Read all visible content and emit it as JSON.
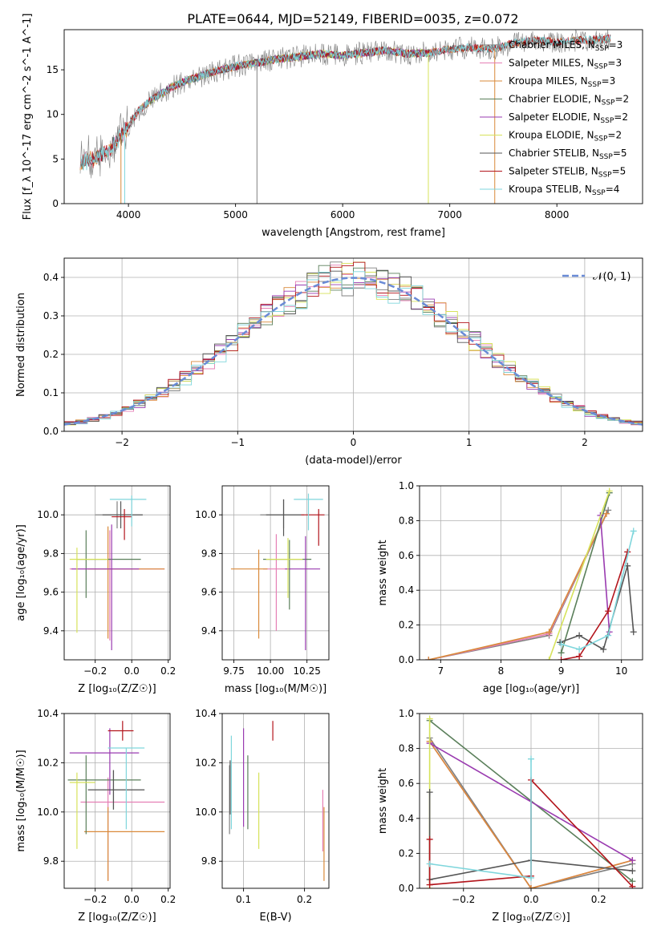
{
  "figure_title": "PLATE=0644, MJD=52149, FIBERID=0035, z=0.072",
  "model_colors": {
    "Chabrier MILES": "#808080",
    "Salpeter MILES": "#e57fb5",
    "Kroupa MILES": "#d98a3a",
    "Chabrier ELODIE": "#5a7f5a",
    "Salpeter ELODIE": "#9a3bb0",
    "Kroupa ELODIE": "#d6e25a",
    "Chabrier STELIB": "#555555",
    "Salpeter STELIB": "#b3151c",
    "Kroupa STELIB": "#7fd6dc"
  },
  "chart_data": [
    {
      "id": "spectrum",
      "type": "line",
      "title": "PLATE=0644, MJD=52149, FIBERID=0035, z=0.072",
      "xlabel": "wavelength [Angstrom, rest frame]",
      "ylabel": "Flux [f_λ 10^-17 erg cm^-2 s^-1 A^-1]",
      "xlim": [
        3400,
        8800
      ],
      "ylim": [
        0,
        19.5
      ],
      "xticks": [
        4000,
        5000,
        6000,
        7000,
        8000
      ],
      "yticks": [
        0,
        5,
        10,
        15
      ],
      "grid": false,
      "legend_position": "right",
      "continuum": {
        "x": [
          3550,
          3600,
          3700,
          3800,
          3900,
          4000,
          4100,
          4200,
          4300,
          4400,
          4500,
          4600,
          4700,
          4800,
          4900,
          5000,
          5200,
          5400,
          5600,
          5800,
          6000,
          6200,
          6400,
          6600,
          6800,
          7000,
          7200,
          7400,
          7600,
          7800,
          8000,
          8200,
          8400,
          8500
        ],
        "y": [
          4.5,
          4.7,
          5.2,
          5.8,
          7.0,
          8.8,
          10.5,
          11.5,
          12.3,
          13.0,
          13.6,
          14.0,
          14.4,
          14.8,
          15.1,
          15.4,
          15.8,
          16.2,
          16.5,
          16.8,
          16.6,
          16.9,
          17.2,
          16.8,
          16.9,
          17.3,
          17.5,
          17.3,
          18.0,
          18.3,
          18.1,
          18.3,
          18.4,
          18.5
        ]
      },
      "legend": [
        {
          "label": "Chabrier MILES, N",
          "sub": "SSP",
          "suffix": "=3"
        },
        {
          "label": "Salpeter MILES, N",
          "sub": "SSP",
          "suffix": "=3"
        },
        {
          "label": "Kroupa MILES, N",
          "sub": "SSP",
          "suffix": "=3"
        },
        {
          "label": "Chabrier ELODIE, N",
          "sub": "SSP",
          "suffix": "=2"
        },
        {
          "label": "Salpeter ELODIE, N",
          "sub": "SSP",
          "suffix": "=2"
        },
        {
          "label": "Kroupa ELODIE, N",
          "sub": "SSP",
          "suffix": "=2"
        },
        {
          "label": "Chabrier STELIB, N",
          "sub": "SSP",
          "suffix": "=5"
        },
        {
          "label": "Salpeter STELIB, N",
          "sub": "SSP",
          "suffix": "=5"
        },
        {
          "label": "Kroupa STELIB, N",
          "sub": "SSP",
          "suffix": "=4"
        }
      ]
    },
    {
      "id": "residuals",
      "type": "line",
      "xlabel": "(data-model)/error",
      "ylabel": "Normed distribution",
      "xlim": [
        -2.5,
        2.5
      ],
      "ylim": [
        0,
        0.45
      ],
      "xticks": [
        -2,
        -1,
        0,
        1,
        2
      ],
      "yticks": [
        0.0,
        0.1,
        0.2,
        0.3,
        0.4
      ],
      "grid": true,
      "legend_position": "top-right",
      "gaussian_label": "𝒩(0, 1)",
      "bin_width": 0.1
    },
    {
      "id": "age_vs_Z",
      "type": "scatter",
      "xlabel": "Z [log₁₀(Z/Z☉)]",
      "ylabel": "age  [log₁₀(age/yr)]",
      "xlim": [
        -0.37,
        0.21
      ],
      "ylim": [
        9.25,
        10.15
      ],
      "xticks": [
        -0.2,
        0.0,
        0.2
      ],
      "yticks": [
        9.4,
        9.6,
        9.8,
        10.0
      ],
      "grid": true,
      "points": [
        {
          "model": "Chabrier MILES",
          "x": -0.08,
          "y": 10.0,
          "xerr": [
            0.12,
            0.14
          ],
          "yerr": [
            0.07,
            0.07
          ]
        },
        {
          "model": "Salpeter MILES",
          "x": -0.12,
          "y": 9.72,
          "xerr": [
            0.22,
            0.3
          ],
          "yerr": [
            0.37,
            0.2
          ]
        },
        {
          "model": "Kroupa MILES",
          "x": -0.13,
          "y": 9.72,
          "xerr": [
            0.11,
            0.31
          ],
          "yerr": [
            0.36,
            0.22
          ]
        },
        {
          "model": "Chabrier ELODIE",
          "x": -0.25,
          "y": 9.77,
          "xerr": [
            0.05,
            0.3
          ],
          "yerr": [
            0.2,
            0.15
          ]
        },
        {
          "model": "Salpeter ELODIE",
          "x": -0.11,
          "y": 9.72,
          "xerr": [
            0.22,
            0.15
          ],
          "yerr": [
            0.42,
            0.23
          ]
        },
        {
          "model": "Kroupa ELODIE",
          "x": -0.3,
          "y": 9.77,
          "xerr": [
            0.04,
            0.17
          ],
          "yerr": [
            0.38,
            0.06
          ]
        },
        {
          "model": "Chabrier STELIB",
          "x": -0.06,
          "y": 10.0,
          "xerr": [
            0.1,
            0.12
          ],
          "yerr": [
            0.07,
            0.07
          ]
        },
        {
          "model": "Salpeter STELIB",
          "x": -0.04,
          "y": 9.99,
          "xerr": [
            0.07,
            0.04
          ],
          "yerr": [
            0.12,
            0.04
          ]
        },
        {
          "model": "Kroupa STELIB",
          "x": 0.0,
          "y": 10.08,
          "xerr": [
            0.12,
            0.08
          ],
          "yerr": [
            0.14,
            0.02
          ]
        }
      ]
    },
    {
      "id": "age_vs_mass",
      "type": "scatter",
      "xlabel": "mass [log₁₀(M/M☉)]",
      "ylabel": "",
      "xlim": [
        9.67,
        10.4
      ],
      "ylim": [
        9.25,
        10.15
      ],
      "xticks": [
        9.75,
        10.0,
        10.25
      ],
      "yticks": [
        9.4,
        9.6,
        9.8,
        10.0
      ],
      "grid": true,
      "points": [
        {
          "model": "Chabrier MILES",
          "x": 10.09,
          "y": 10.0,
          "xerr": [
            0.16,
            0.14
          ],
          "yerr": [
            0.07,
            0.08
          ]
        },
        {
          "model": "Salpeter MILES",
          "x": 10.04,
          "y": 9.72,
          "xerr": [
            0.09,
            0.1
          ],
          "yerr": [
            0.32,
            0.18
          ]
        },
        {
          "model": "Kroupa MILES",
          "x": 9.92,
          "y": 9.72,
          "xerr": [
            0.19,
            0.06
          ],
          "yerr": [
            0.36,
            0.1
          ]
        },
        {
          "model": "Chabrier ELODIE",
          "x": 10.13,
          "y": 9.77,
          "xerr": [
            0.18,
            0.15
          ],
          "yerr": [
            0.26,
            0.1
          ]
        },
        {
          "model": "Salpeter ELODIE",
          "x": 10.24,
          "y": 9.72,
          "xerr": [
            0.14,
            0.1
          ],
          "yerr": [
            0.42,
            0.17
          ]
        },
        {
          "model": "Kroupa ELODIE",
          "x": 10.12,
          "y": 9.77,
          "xerr": [
            0.15,
            0.1
          ],
          "yerr": [
            0.2,
            0.11
          ]
        },
        {
          "model": "Chabrier STELIB",
          "x": 10.09,
          "y": 10.0,
          "xerr": [
            0.12,
            0.12
          ],
          "yerr": [
            0.11,
            0.08
          ]
        },
        {
          "model": "Salpeter STELIB",
          "x": 10.33,
          "y": 10.0,
          "xerr": [
            0.12,
            0.04
          ],
          "yerr": [
            0.16,
            0.03
          ]
        },
        {
          "model": "Kroupa STELIB",
          "x": 10.26,
          "y": 10.08,
          "xerr": [
            0.1,
            0.1
          ],
          "yerr": [
            0.16,
            0.03
          ]
        }
      ]
    },
    {
      "id": "mass_weight_vs_age",
      "type": "line",
      "xlabel": "age  [log₁₀(age/yr)]",
      "ylabel": "mass weight",
      "xlim": [
        6.65,
        10.35
      ],
      "ylim": [
        0,
        1.0
      ],
      "xticks": [
        7,
        8,
        9,
        10
      ],
      "yticks": [
        0.0,
        0.2,
        0.4,
        0.6,
        0.8,
        1.0
      ],
      "grid": true,
      "series": [
        {
          "model": "Chabrier MILES",
          "x": [
            6.8,
            8.8,
            9.78
          ],
          "y": [
            0.0,
            0.14,
            0.86
          ]
        },
        {
          "model": "Salpeter MILES",
          "x": [
            6.8,
            8.8,
            9.75
          ],
          "y": [
            0.0,
            0.15,
            0.84
          ]
        },
        {
          "model": "Kroupa MILES",
          "x": [
            6.8,
            8.8,
            9.75
          ],
          "y": [
            0.0,
            0.16,
            0.84
          ]
        },
        {
          "model": "Chabrier ELODIE",
          "x": [
            9.0,
            9.8
          ],
          "y": [
            0.04,
            0.96
          ]
        },
        {
          "model": "Salpeter ELODIE",
          "x": [
            9.65,
            9.8
          ],
          "y": [
            0.83,
            0.16
          ]
        },
        {
          "model": "Kroupa ELODIE",
          "x": [
            8.8,
            9.8
          ],
          "y": [
            0.0,
            0.97
          ]
        },
        {
          "model": "Chabrier STELIB",
          "x": [
            8.98,
            9.3,
            9.7,
            10.1,
            10.2
          ],
          "y": [
            0.1,
            0.14,
            0.06,
            0.54,
            0.16
          ]
        },
        {
          "model": "Salpeter STELIB",
          "x": [
            9.0,
            9.3,
            9.78,
            10.1
          ],
          "y": [
            0.0,
            0.02,
            0.28,
            0.62
          ]
        },
        {
          "model": "Kroupa STELIB",
          "x": [
            9.0,
            9.3,
            9.78,
            10.2
          ],
          "y": [
            0.09,
            0.06,
            0.14,
            0.74
          ]
        }
      ]
    },
    {
      "id": "mass_vs_Z",
      "type": "scatter",
      "xlabel": "Z [log₁₀(Z/Z☉)]",
      "ylabel": "mass [log₁₀(M/M☉)]",
      "xlim": [
        -0.37,
        0.21
      ],
      "ylim": [
        9.69,
        10.4
      ],
      "xticks": [
        -0.2,
        0.0,
        0.2
      ],
      "yticks": [
        9.8,
        10.0,
        10.2,
        10.4
      ],
      "grid": true,
      "points": [
        {
          "model": "Chabrier MILES",
          "x": -0.1,
          "y": 10.09,
          "xerr": [
            0.14,
            0.17
          ],
          "yerr": [
            0.08,
            0.08
          ]
        },
        {
          "model": "Salpeter MILES",
          "x": -0.13,
          "y": 10.04,
          "xerr": [
            0.15,
            0.31
          ],
          "yerr": [
            0.32,
            0.1
          ]
        },
        {
          "model": "Kroupa MILES",
          "x": -0.13,
          "y": 9.92,
          "xerr": [
            0.13,
            0.31
          ],
          "yerr": [
            0.2,
            0.1
          ]
        },
        {
          "model": "Chabrier ELODIE",
          "x": -0.25,
          "y": 10.13,
          "xerr": [
            0.1,
            0.3
          ],
          "yerr": [
            0.22,
            0.1
          ]
        },
        {
          "model": "Salpeter ELODIE",
          "x": -0.12,
          "y": 10.24,
          "xerr": [
            0.22,
            0.16
          ],
          "yerr": [
            0.17,
            0.1
          ]
        },
        {
          "model": "Kroupa ELODIE",
          "x": -0.3,
          "y": 10.12,
          "xerr": [
            0.04,
            0.1
          ],
          "yerr": [
            0.27,
            0.04
          ]
        },
        {
          "model": "Chabrier STELIB",
          "x": -0.1,
          "y": 10.09,
          "xerr": [
            0.14,
            0.17
          ],
          "yerr": [
            0.08,
            0.08
          ]
        },
        {
          "model": "Salpeter STELIB",
          "x": -0.05,
          "y": 10.33,
          "xerr": [
            0.08,
            0.06
          ],
          "yerr": [
            0.04,
            0.04
          ]
        },
        {
          "model": "Kroupa STELIB",
          "x": -0.03,
          "y": 10.26,
          "xerr": [
            0.1,
            0.1
          ],
          "yerr": [
            0.33,
            0.0
          ]
        }
      ]
    },
    {
      "id": "mass_vs_EBV",
      "type": "scatter",
      "xlabel": "E(B-V)",
      "ylabel": "",
      "xlim": [
        0.065,
        0.24
      ],
      "ylim": [
        9.69,
        10.4
      ],
      "xticks": [
        0.1,
        0.2
      ],
      "yticks": [
        9.8,
        10.0,
        10.2,
        10.4
      ],
      "grid": true,
      "points": [
        {
          "model": "Chabrier MILES",
          "x": 0.077,
          "y": 10.09,
          "xerr": [
            0,
            0
          ],
          "yerr": [
            0.18,
            0.1
          ]
        },
        {
          "model": "Salpeter MILES",
          "x": 0.23,
          "y": 9.92,
          "xerr": [
            0,
            0
          ],
          "yerr": [
            0.08,
            0.17
          ]
        },
        {
          "model": "Kroupa MILES",
          "x": 0.232,
          "y": 9.92,
          "xerr": [
            0,
            0
          ],
          "yerr": [
            0.2,
            0.1
          ]
        },
        {
          "model": "Chabrier ELODIE",
          "x": 0.107,
          "y": 10.13,
          "xerr": [
            0,
            0
          ],
          "yerr": [
            0.2,
            0.1
          ]
        },
        {
          "model": "Salpeter ELODIE",
          "x": 0.1,
          "y": 10.24,
          "xerr": [
            0,
            0
          ],
          "yerr": [
            0.3,
            0.1
          ]
        },
        {
          "model": "Kroupa ELODIE",
          "x": 0.125,
          "y": 10.12,
          "xerr": [
            0,
            0
          ],
          "yerr": [
            0.27,
            0.04
          ]
        },
        {
          "model": "Chabrier STELIB",
          "x": 0.078,
          "y": 10.09,
          "xerr": [
            0,
            0
          ],
          "yerr": [
            0.1,
            0.12
          ]
        },
        {
          "model": "Salpeter STELIB",
          "x": 0.148,
          "y": 10.33,
          "xerr": [
            0,
            0
          ],
          "yerr": [
            0.04,
            0.04
          ]
        },
        {
          "model": "Kroupa STELIB",
          "x": 0.08,
          "y": 10.26,
          "xerr": [
            0,
            0
          ],
          "yerr": [
            0.33,
            0.05
          ]
        }
      ]
    },
    {
      "id": "mass_weight_vs_Z",
      "type": "line",
      "xlabel": "Z [log₁₀(Z/Z☉)]",
      "ylabel": "mass weight",
      "xlim": [
        -0.33,
        0.33
      ],
      "ylim": [
        0,
        1.0
      ],
      "xticks": [
        -0.2,
        0.0,
        0.2
      ],
      "yticks": [
        0.0,
        0.2,
        0.4,
        0.6,
        0.8,
        1.0
      ],
      "grid": true,
      "series": [
        {
          "model": "Chabrier MILES",
          "x": [
            -0.3,
            0.0,
            0.3
          ],
          "y": [
            0.86,
            0.0,
            0.14
          ]
        },
        {
          "model": "Salpeter MILES",
          "x": [
            -0.3,
            0.0,
            0.3
          ],
          "y": [
            0.84,
            0.0,
            0.16
          ]
        },
        {
          "model": "Kroupa MILES",
          "x": [
            -0.3,
            0.0,
            0.3
          ],
          "y": [
            0.84,
            0.0,
            0.16
          ]
        },
        {
          "model": "Chabrier ELODIE",
          "x": [
            -0.3,
            0.3
          ],
          "y": [
            0.96,
            0.04
          ]
        },
        {
          "model": "Salpeter ELODIE",
          "x": [
            -0.3,
            0.3
          ],
          "y": [
            0.83,
            0.16
          ]
        },
        {
          "model": "Kroupa ELODIE",
          "x": [
            -0.3,
            -0.3
          ],
          "y": [
            0.97,
            0.0
          ]
        },
        {
          "model": "Chabrier STELIB",
          "x": [
            -0.3,
            -0.3,
            0.0,
            0.3
          ],
          "y": [
            0.55,
            0.05,
            0.16,
            0.1
          ]
        },
        {
          "model": "Salpeter STELIB",
          "x": [
            -0.3,
            -0.3,
            0.0,
            0.0,
            0.3
          ],
          "y": [
            0.28,
            0.02,
            0.07,
            0.62,
            0.01
          ]
        },
        {
          "model": "Kroupa STELIB",
          "x": [
            -0.3,
            0.0,
            0.0
          ],
          "y": [
            0.14,
            0.06,
            0.74
          ]
        }
      ]
    }
  ]
}
